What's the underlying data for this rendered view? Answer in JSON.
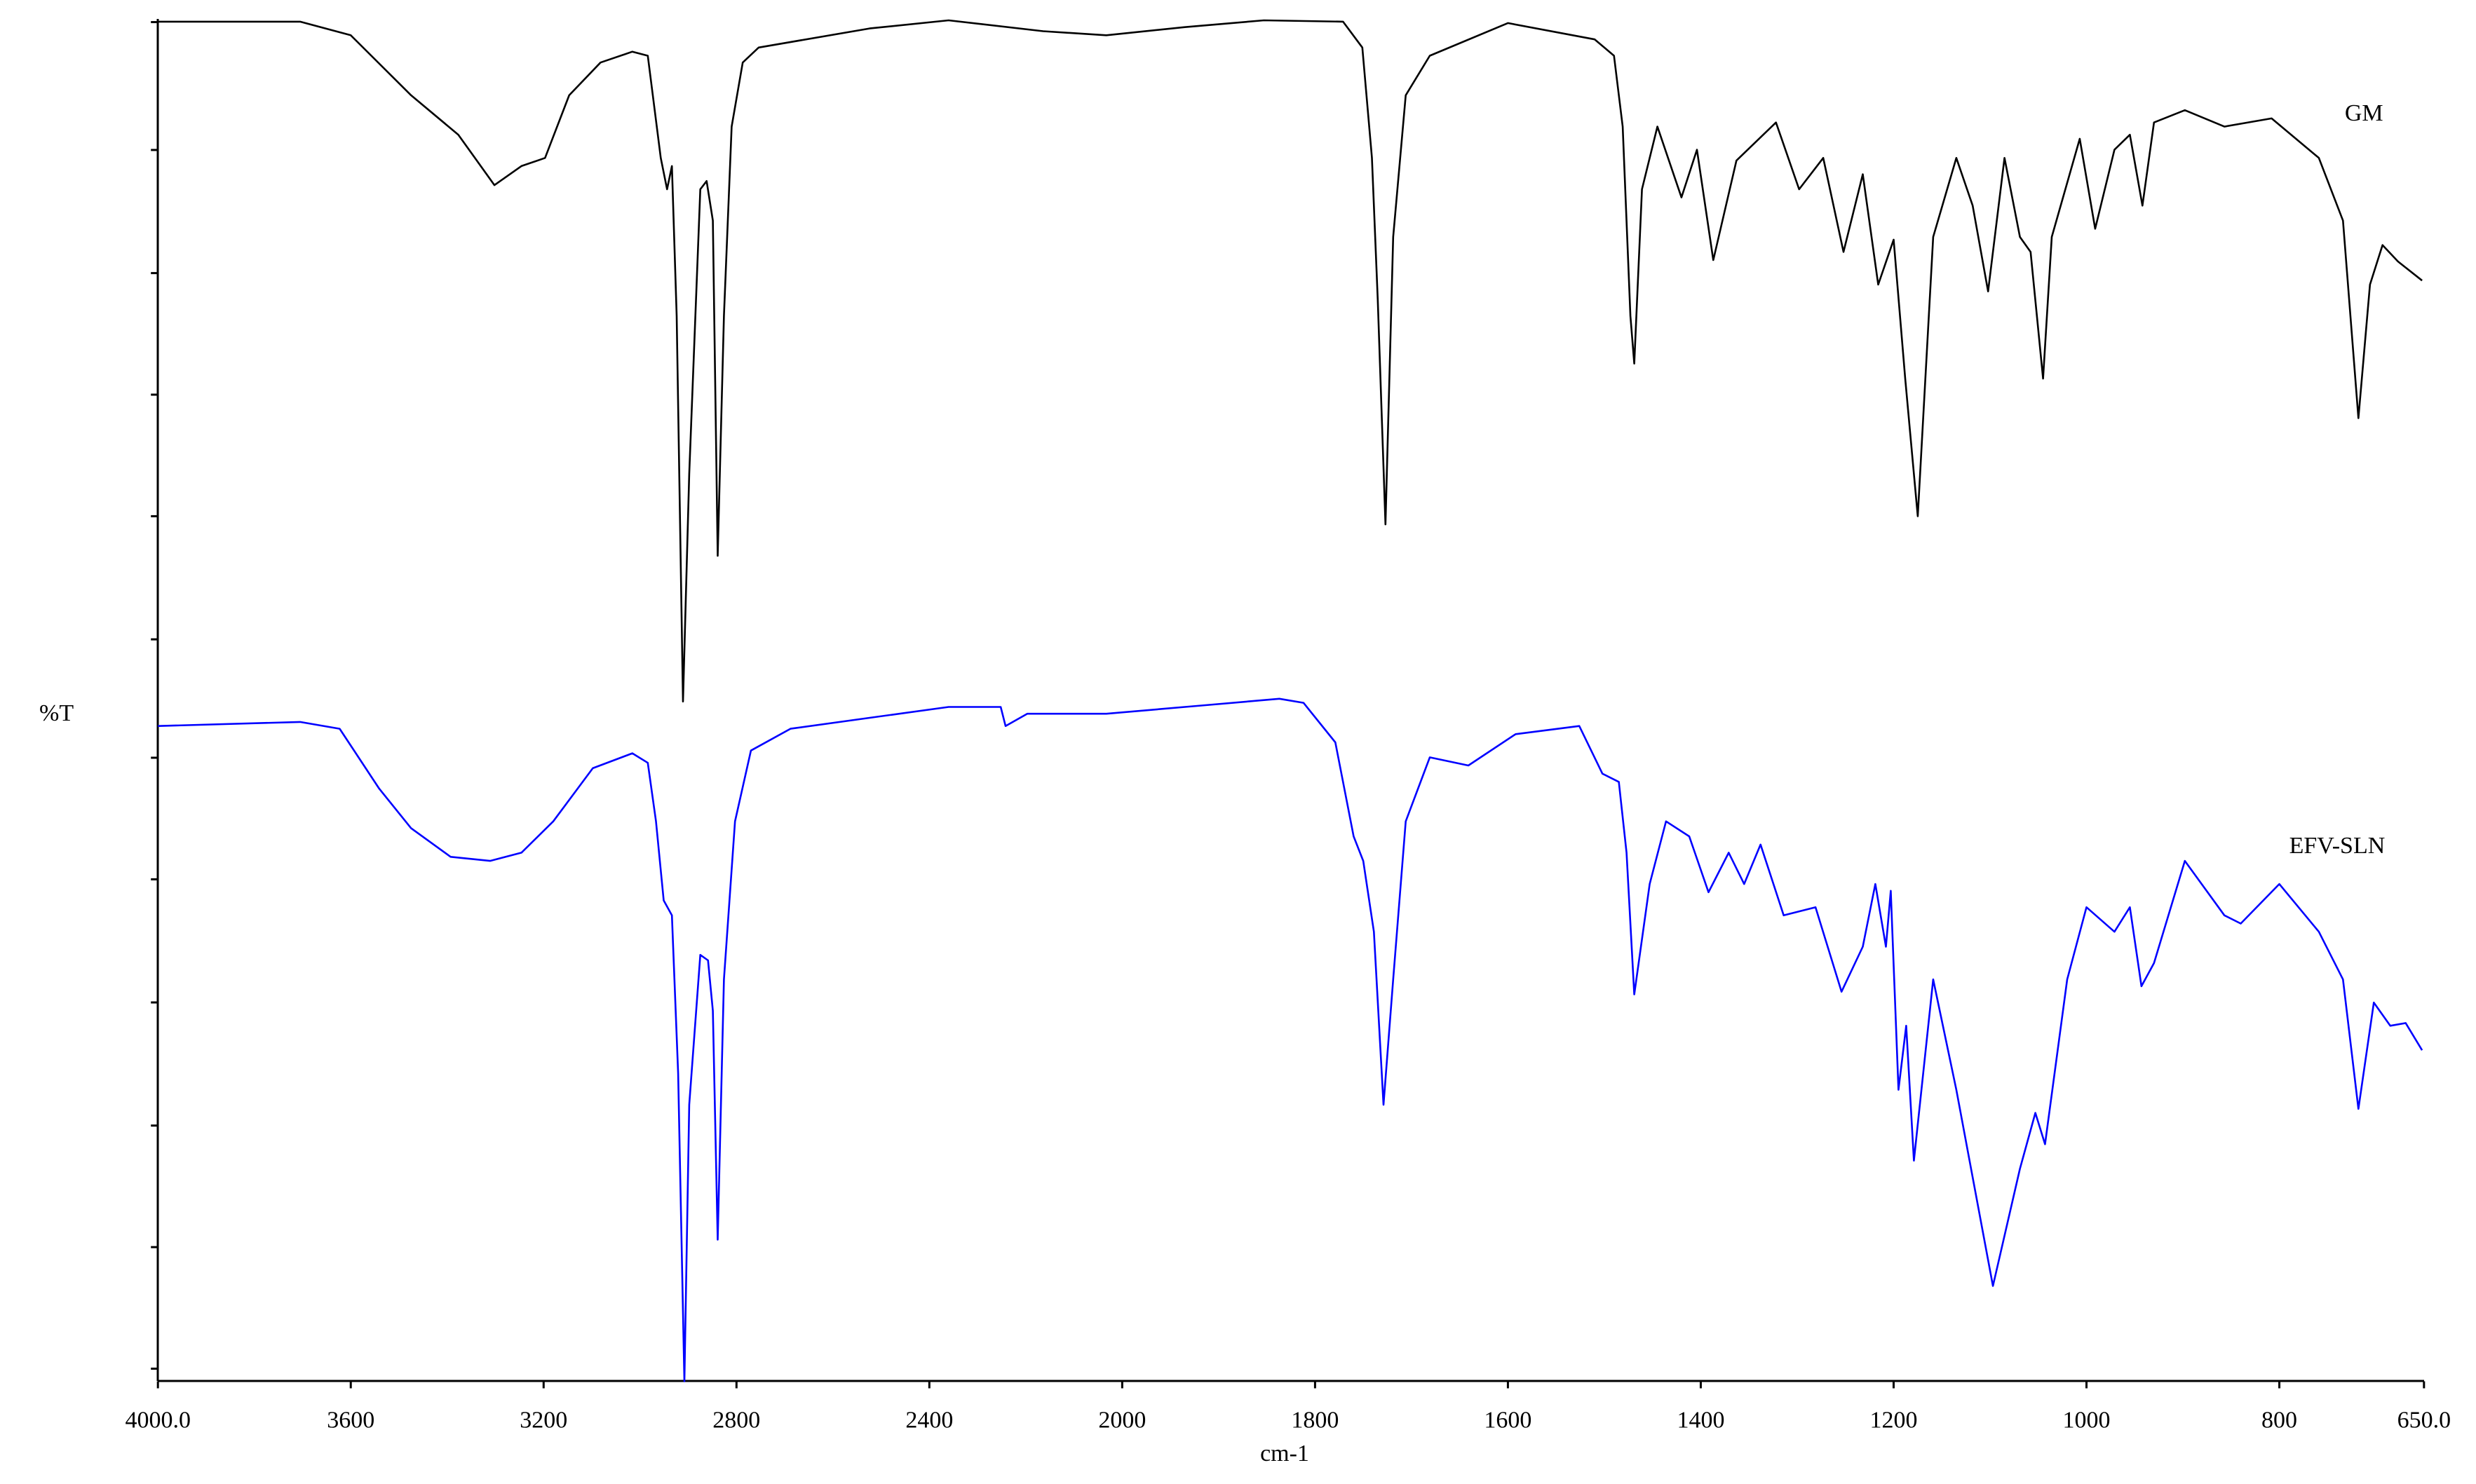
{
  "chart_data": {
    "type": "line",
    "xlabel": "cm-1",
    "ylabel": "%T",
    "xlim": [
      4000,
      650
    ],
    "ylim": [
      0,
      100
    ],
    "xbreak": {
      "at": 2000,
      "expand": 2
    },
    "xticks": [
      {
        "value": 4000,
        "label": "4000.0"
      },
      3600,
      3200,
      2800,
      2400,
      2000,
      1800,
      1600,
      1400,
      1200,
      1000,
      800,
      {
        "value": 650,
        "label": "650.0"
      }
    ],
    "series": [
      {
        "name": "GM",
        "color": "#000000",
        "x": [
          4000,
          3705,
          3600,
          3475,
          3377,
          3302,
          3246,
          3197,
          3147,
          3082,
          3016,
          2984,
          2957,
          2944,
          2934,
          2924,
          2911,
          2898,
          2875,
          2862,
          2849,
          2839,
          2826,
          2810,
          2787,
          2754,
          2524,
          2360,
          2164,
          2033,
          1935,
          1853,
          1771,
          1751,
          1741,
          1735,
          1727,
          1719,
          1706,
          1681,
          1600,
          1510,
          1490,
          1481,
          1473,
          1469,
          1461,
          1445,
          1420,
          1404,
          1387,
          1363,
          1322,
          1298,
          1273,
          1252,
          1232,
          1216,
          1200,
          1188,
          1175,
          1159,
          1135,
          1118,
          1102,
          1085,
          1069,
          1058,
          1045,
          1036,
          1007,
          991,
          971,
          955,
          942,
          930,
          898,
          857,
          808,
          759,
          734,
          718,
          706,
          693,
          677,
          652
        ],
        "values": [
          99.8,
          99.8,
          98.8,
          94.4,
          91.5,
          87.8,
          89.2,
          89.8,
          94.4,
          96.8,
          97.6,
          97.3,
          89.8,
          87.5,
          89.2,
          78.2,
          49.9,
          66.6,
          87.5,
          88.1,
          85.2,
          60.6,
          78.2,
          92.1,
          96.8,
          97.9,
          99.3,
          99.9,
          99.1,
          98.8,
          99.4,
          99.9,
          99.8,
          97.9,
          89.8,
          79.4,
          62.9,
          84.0,
          94.4,
          97.3,
          99.7,
          98.5,
          97.3,
          92.1,
          78.2,
          74.7,
          87.5,
          92.1,
          86.9,
          90.4,
          82.3,
          89.6,
          92.4,
          87.5,
          89.8,
          82.9,
          88.6,
          80.5,
          83.8,
          73.6,
          63.5,
          84.0,
          89.8,
          86.3,
          80.0,
          89.8,
          84.0,
          82.9,
          73.6,
          84.0,
          91.2,
          84.6,
          90.4,
          91.5,
          86.3,
          92.4,
          93.3,
          92.1,
          92.7,
          89.8,
          85.2,
          70.7,
          80.5,
          83.4,
          82.2,
          80.8
        ]
      },
      {
        "name": "EFV-SLN",
        "color": "#0000ff",
        "x": [
          4000,
          3705,
          3623,
          3541,
          3475,
          3393,
          3311,
          3246,
          3180,
          3098,
          3016,
          2984,
          2967,
          2951,
          2934,
          2921,
          2908,
          2898,
          2875,
          2859,
          2849,
          2839,
          2826,
          2803,
          2770,
          2688,
          2524,
          2360,
          2252,
          2242,
          2197,
          2033,
          1918,
          1837,
          1812,
          1779,
          1760,
          1750,
          1739,
          1729,
          1719,
          1706,
          1681,
          1641,
          1592,
          1526,
          1502,
          1485,
          1477,
          1469,
          1453,
          1436,
          1412,
          1392,
          1371,
          1355,
          1338,
          1314,
          1281,
          1254,
          1232,
          1219,
          1208,
          1203,
          1195,
          1187,
          1179,
          1159,
          1135,
          1097,
          1069,
          1053,
          1043,
          1020,
          1000,
          971,
          955,
          943,
          930,
          898,
          857,
          840,
          800,
          759,
          734,
          718,
          702,
          685,
          669,
          652
        ],
        "values": [
          48.1,
          48.4,
          47.9,
          43.5,
          40.6,
          38.5,
          38.2,
          38.8,
          41.1,
          45.0,
          46.1,
          45.4,
          41.1,
          35.3,
          34.2,
          22.6,
          0,
          20.3,
          31.3,
          30.9,
          27.2,
          10.4,
          29.5,
          41.1,
          46.3,
          47.9,
          48.7,
          49.5,
          49.5,
          48.1,
          49.0,
          49.0,
          49.6,
          50.1,
          49.8,
          46.9,
          40.0,
          38.2,
          33.0,
          20.3,
          29.5,
          41.1,
          45.8,
          45.2,
          47.5,
          48.1,
          44.6,
          44.0,
          38.8,
          28.4,
          36.5,
          41.1,
          40.0,
          35.9,
          38.8,
          36.5,
          39.4,
          34.2,
          34.8,
          28.6,
          31.9,
          36.5,
          31.9,
          36.0,
          21.4,
          26.1,
          16.2,
          29.5,
          21.4,
          7.0,
          15.6,
          19.7,
          17.4,
          29.5,
          34.8,
          33.0,
          34.8,
          29.0,
          30.7,
          38.2,
          34.2,
          33.6,
          36.5,
          33.0,
          29.5,
          20.0,
          27.8,
          26.1,
          26.3,
          24.3
        ]
      }
    ]
  }
}
